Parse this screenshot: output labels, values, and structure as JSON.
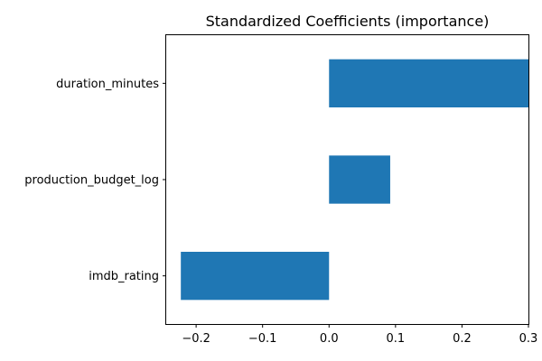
{
  "chart_data": {
    "type": "bar",
    "orientation": "horizontal",
    "title": "Standardized Coefficients (importance)",
    "xlabel": "",
    "ylabel": "",
    "categories": [
      "imdb_rating",
      "production_budget_log",
      "duration_minutes"
    ],
    "values": [
      -0.223,
      0.092,
      0.3
    ],
    "xlim": [
      -0.245,
      0.3
    ],
    "xticks": [
      -0.2,
      -0.1,
      0.0,
      0.1,
      0.2,
      0.3
    ],
    "xtick_labels": [
      "−0.2",
      "−0.1",
      "0.0",
      "0.1",
      "0.2",
      "0.3"
    ],
    "grid": false,
    "colors": {
      "bar": "#1f77b4",
      "axis": "#000000"
    }
  }
}
